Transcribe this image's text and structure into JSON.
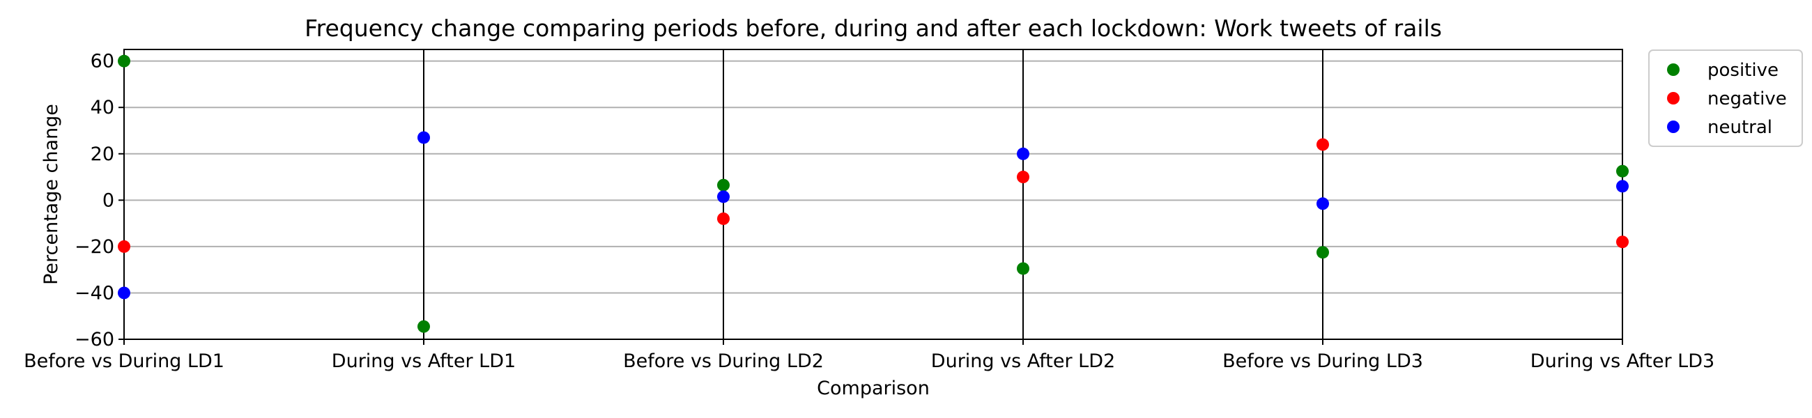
{
  "chart_data": {
    "type": "scatter",
    "title": "Frequency change comparing periods before, during and after each lockdown: Work tweets of rails",
    "xlabel": "Comparison",
    "ylabel": "Percentage change",
    "categories": [
      "Before vs During LD1",
      "During vs After LD1",
      "Before vs During LD2",
      "During vs After LD2",
      "Before vs During LD3",
      "During vs After LD3"
    ],
    "ylim": [
      -60,
      65
    ],
    "yticks": [
      -60,
      -40,
      -20,
      0,
      20,
      40,
      60
    ],
    "ytick_labels": [
      "−60",
      "−40",
      "−20",
      "0",
      "20",
      "40",
      "60"
    ],
    "grid": "horizontal",
    "vertical_lines_at": [
      1,
      2,
      3,
      4
    ],
    "legend_position": "outside top-right",
    "series": [
      {
        "name": "positive",
        "color": "#008000",
        "values": [
          60,
          -54.5,
          6.5,
          -29.5,
          -22.5,
          12.5
        ]
      },
      {
        "name": "negative",
        "color": "#ff0000",
        "values": [
          -20,
          null,
          -8,
          10,
          24,
          -18
        ]
      },
      {
        "name": "neutral",
        "color": "#0000ff",
        "values": [
          -40,
          27,
          1.5,
          20,
          -1.5,
          6
        ]
      }
    ]
  }
}
